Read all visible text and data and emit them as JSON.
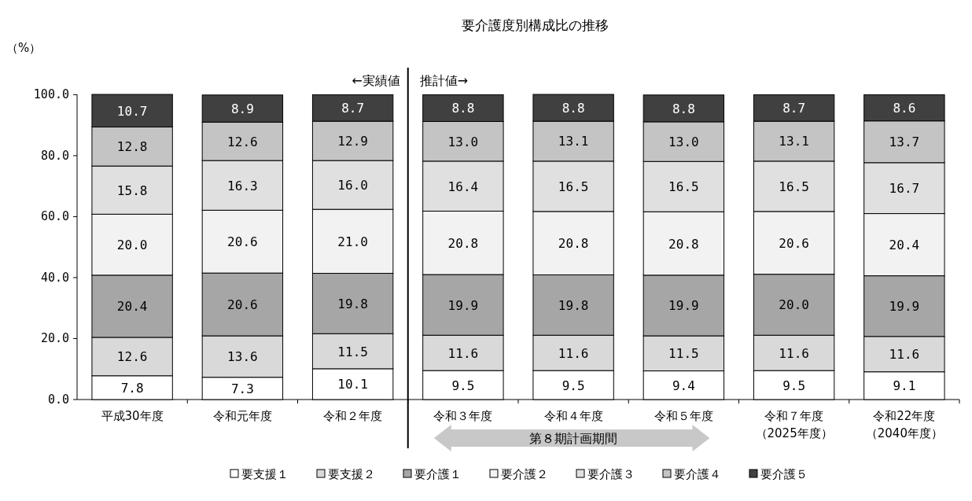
{
  "chart_data": {
    "type": "bar",
    "stacked": true,
    "title": "要介護度別構成比の推移",
    "ylabel": "（%）",
    "categories": [
      "平成30年度",
      "令和元年度",
      "令和２年度",
      "令和３年度",
      "令和４年度",
      "令和５年度",
      "令和７年度（2025年度）",
      "令和22年度（2040年度）"
    ],
    "series": [
      {
        "name": "要支援１",
        "color": "#ffffff",
        "values": [
          7.8,
          7.3,
          10.1,
          9.5,
          9.5,
          9.4,
          9.5,
          9.1
        ],
        "value_labels": [
          "7.8",
          "7.3",
          "10.1",
          "9.5",
          "9.5",
          "9.4",
          "9.5",
          "9.1"
        ]
      },
      {
        "name": "要支援２",
        "color": "#d9d9d9",
        "values": [
          12.6,
          13.6,
          11.5,
          11.6,
          11.6,
          11.5,
          11.6,
          11.6
        ],
        "value_labels": [
          "12.6",
          "13.6",
          "11.5",
          "11.6",
          "11.6",
          "11.5",
          "11.6",
          "11.6"
        ]
      },
      {
        "name": "要介護１",
        "color": "#a6a6a6",
        "values": [
          20.4,
          20.6,
          19.8,
          19.9,
          19.8,
          19.9,
          20.0,
          19.9
        ],
        "value_labels": [
          "20.4",
          "20.6",
          "19.8",
          "19.9",
          "19.8",
          "19.9",
          "20.0",
          "19.9"
        ]
      },
      {
        "name": "要介護２",
        "color": "#f2f2f2",
        "values": [
          20.0,
          20.6,
          21.0,
          20.8,
          20.8,
          20.8,
          20.6,
          20.4
        ],
        "value_labels": [
          "20.0",
          "20.6",
          "21.0",
          "20.8",
          "20.8",
          "20.8",
          "20.6",
          "20.4"
        ]
      },
      {
        "name": "要介護３",
        "color": "#e0e0e0",
        "values": [
          15.8,
          16.3,
          16.0,
          16.4,
          16.5,
          16.5,
          16.5,
          16.7
        ],
        "value_labels": [
          "15.8",
          "16.3",
          "16.0",
          "16.4",
          "16.5",
          "16.5",
          "16.5",
          "16.7"
        ]
      },
      {
        "name": "要介護４",
        "color": "#c4c4c4",
        "values": [
          12.8,
          12.6,
          12.9,
          13.0,
          13.1,
          13.0,
          13.1,
          13.7
        ],
        "value_labels": [
          "12.8",
          "12.6",
          "12.9",
          "13.0",
          "13.1",
          "13.0",
          "13.1",
          "13.7"
        ]
      },
      {
        "name": "要介護５",
        "color": "#404040",
        "values": [
          10.7,
          8.9,
          8.7,
          8.8,
          8.8,
          8.8,
          8.7,
          8.6
        ],
        "value_labels": [
          "10.7",
          "8.9",
          "8.7",
          "8.8",
          "8.8",
          "8.8",
          "8.7",
          "8.6"
        ]
      }
    ],
    "ylim": [
      0,
      100.1
    ],
    "yticks": [
      {
        "value": 0,
        "label": "0.0"
      },
      {
        "value": 20,
        "label": "20.0"
      },
      {
        "value": 40,
        "label": "40.0"
      },
      {
        "value": 60,
        "label": "60.0"
      },
      {
        "value": 80,
        "label": "80.0"
      },
      {
        "value": 100,
        "label": "100.0"
      }
    ],
    "annotations": [
      "←実績値",
      "推計値→",
      "第８期計画期間"
    ],
    "grid": false,
    "legend": "bottom"
  }
}
